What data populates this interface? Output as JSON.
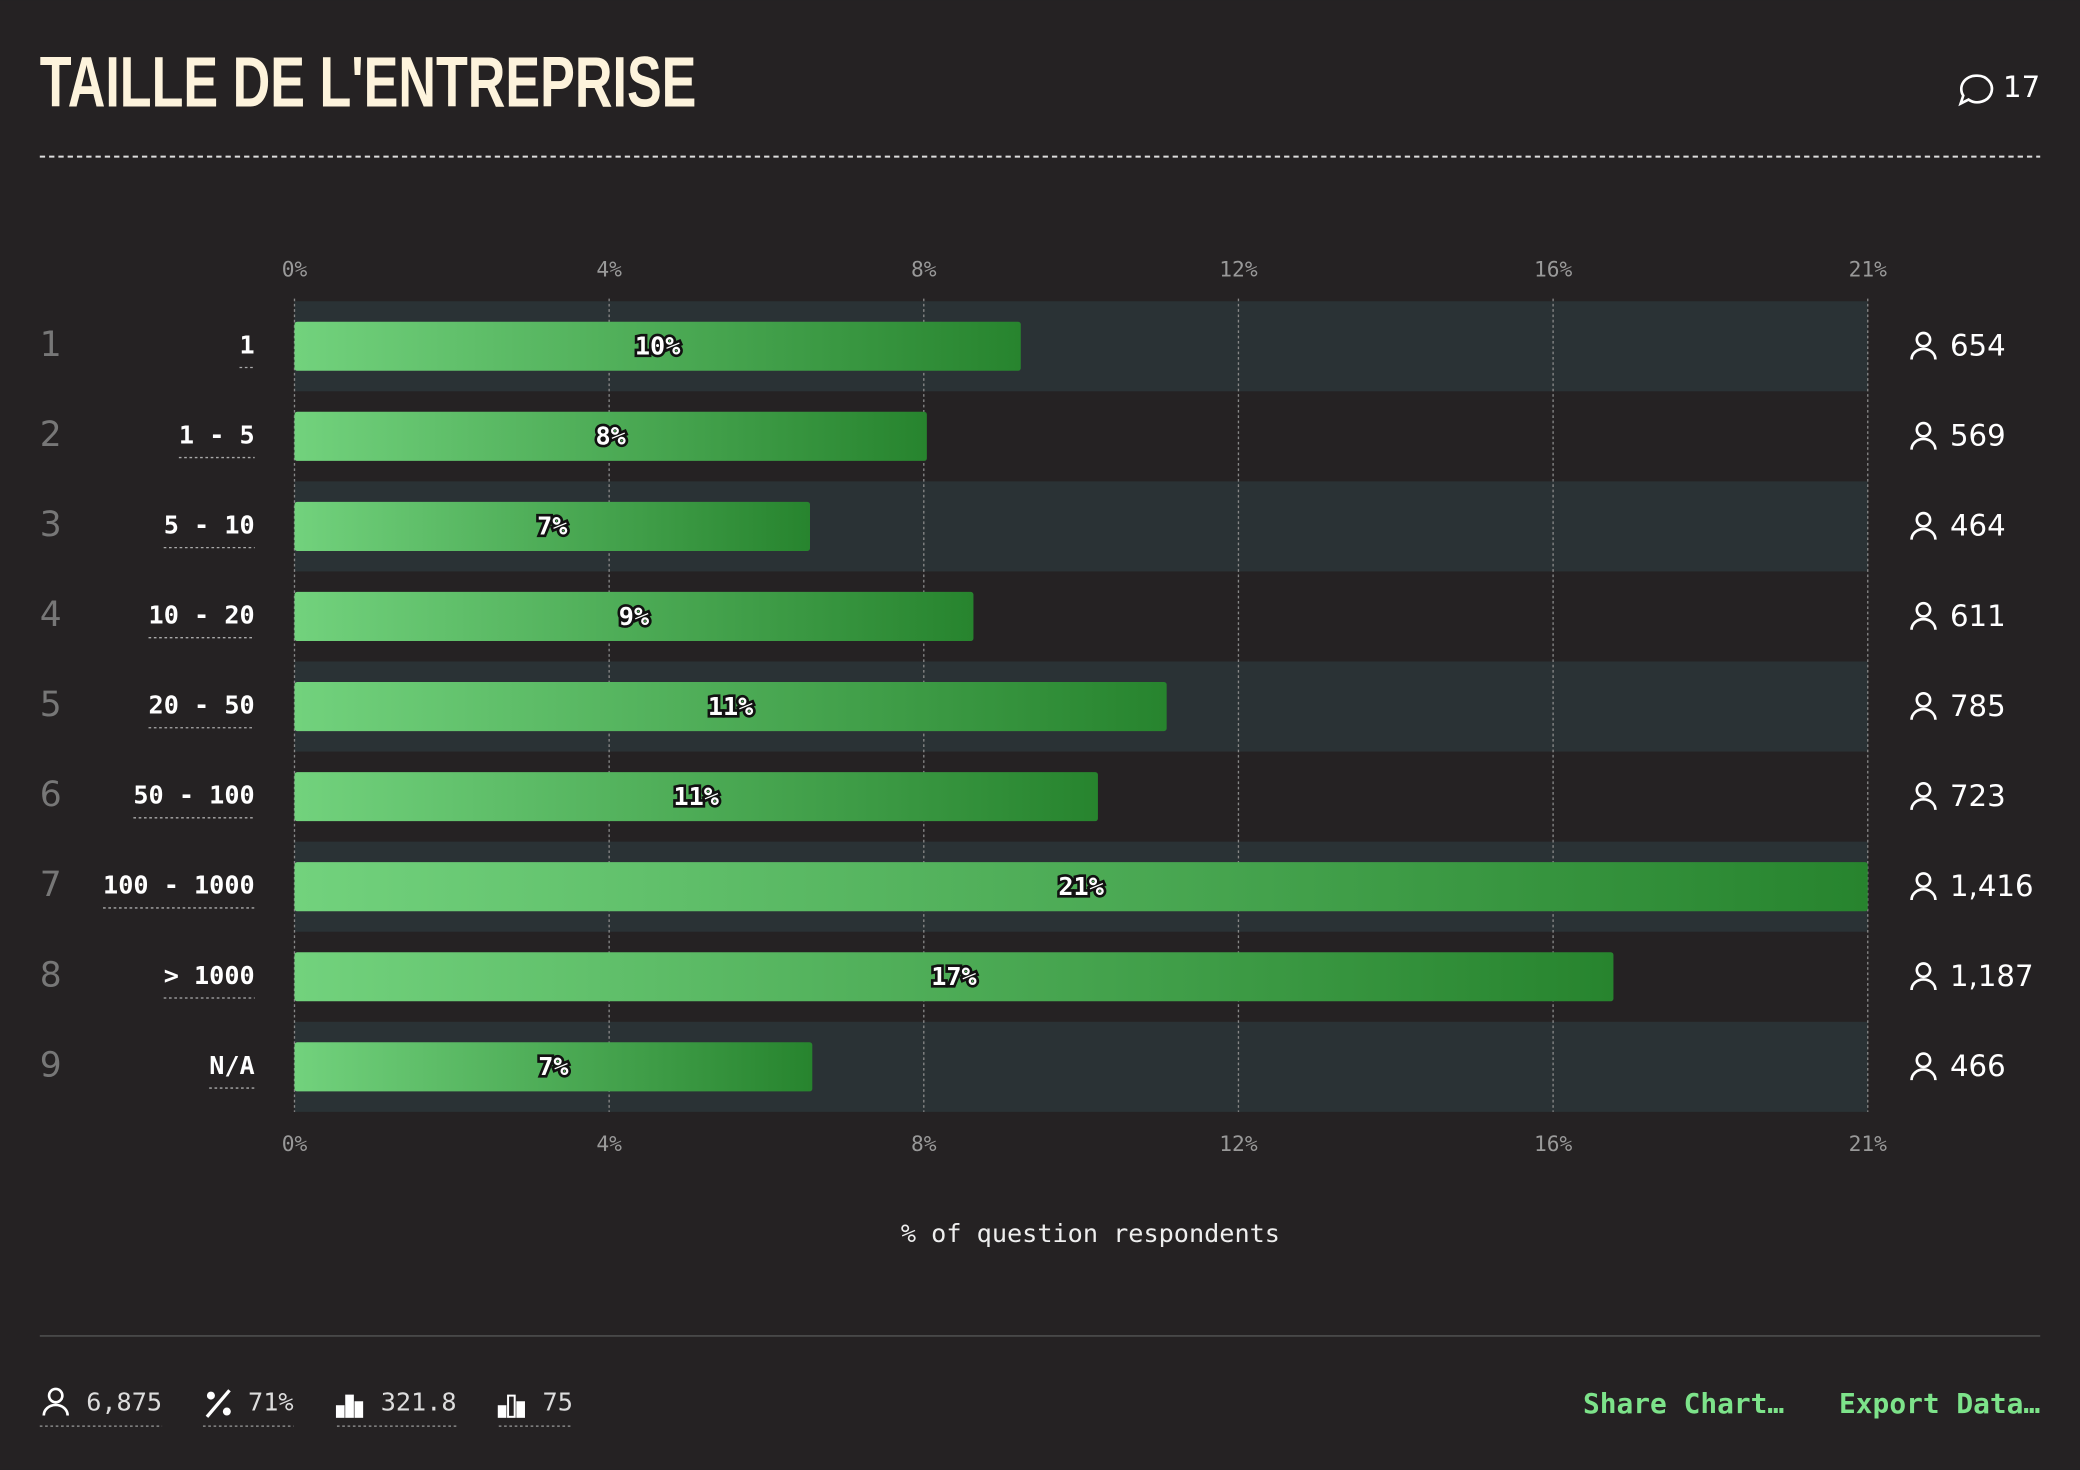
{
  "header": {
    "title": "TAILLE DE L'ENTREPRISE",
    "comments": "17"
  },
  "chart_data": {
    "type": "bar",
    "orientation": "horizontal",
    "row_numbers": [
      "1",
      "2",
      "3",
      "4",
      "5",
      "6",
      "7",
      "8",
      "9"
    ],
    "categories": [
      "1",
      "1 - 5",
      "5 - 10",
      "10 - 20",
      "20 - 50",
      "50 - 100",
      "100 - 1000",
      "> 1000",
      "N/A"
    ],
    "values": [
      9.51,
      8.28,
      6.75,
      8.89,
      11.42,
      10.52,
      20.6,
      17.27,
      6.78
    ],
    "value_labels": [
      "10%",
      "8%",
      "7%",
      "9%",
      "11%",
      "11%",
      "21%",
      "17%",
      "7%"
    ],
    "respondents": [
      "654",
      "569",
      "464",
      "611",
      "785",
      "723",
      "1,416",
      "1,187",
      "466"
    ],
    "xlim": [
      0,
      20.6
    ],
    "xticks": [
      {
        "value": 0,
        "label": "0%"
      },
      {
        "value": 4.12,
        "label": "4%"
      },
      {
        "value": 8.24,
        "label": "8%"
      },
      {
        "value": 12.36,
        "label": "12%"
      },
      {
        "value": 16.48,
        "label": "16%"
      },
      {
        "value": 20.6,
        "label": "21%"
      }
    ],
    "xlabel": "% of question respondents",
    "grid": true,
    "color": [
      "#72d27d",
      "#27842e"
    ]
  },
  "footer": {
    "stats": [
      "6,875",
      "71%",
      "321.8",
      "75"
    ],
    "buttons": [
      "Share Chart…",
      "Export Data…"
    ]
  }
}
